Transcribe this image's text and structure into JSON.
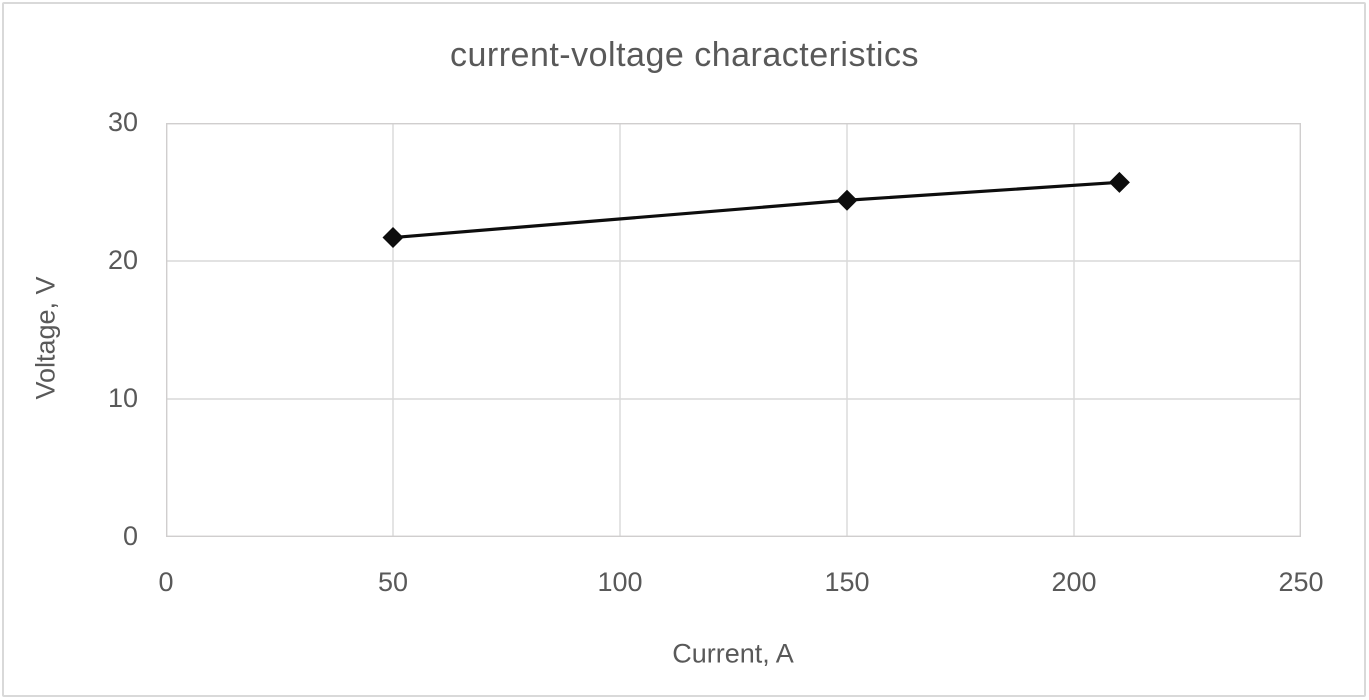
{
  "frame": {
    "border_color": "#d9d9d9",
    "background": "#ffffff"
  },
  "chart_data": {
    "type": "line",
    "title": "current-voltage characteristics",
    "xlabel": "Current, A",
    "ylabel": "Voltage, V",
    "points": [
      {
        "x": 50,
        "y": 21.7
      },
      {
        "x": 150,
        "y": 24.4
      },
      {
        "x": 210,
        "y": 25.7
      }
    ],
    "xlim": [
      0,
      250
    ],
    "ylim": [
      0,
      30
    ],
    "xticks": [
      0,
      50,
      100,
      150,
      200,
      250
    ],
    "yticks": [
      0,
      10,
      20,
      30
    ],
    "grid": true,
    "legend": "none",
    "marker": "diamond",
    "marker_color": "#0d0d0d",
    "line_color": "#0d0d0d",
    "gridline_color": "#d9d9d9",
    "plot_border_color": "#d0cece",
    "text_color": "#595959"
  }
}
